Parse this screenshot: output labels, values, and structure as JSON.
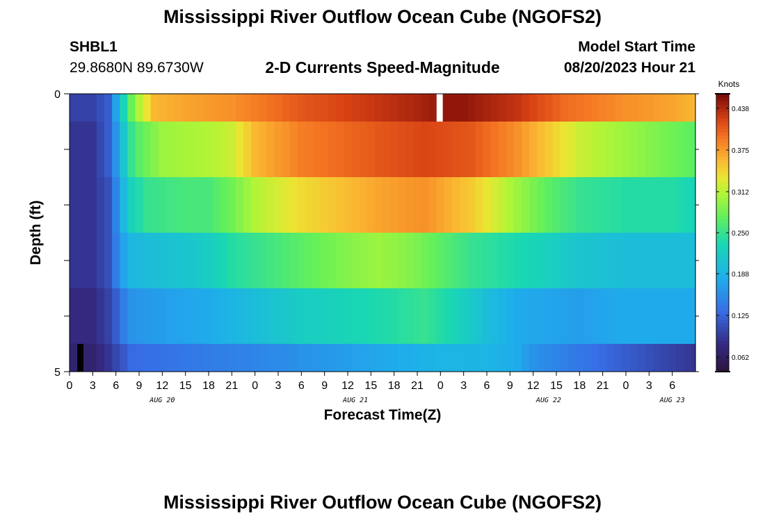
{
  "header": {
    "title": "Mississippi River Outflow Ocean Cube (NGOFS2)",
    "station": "SHBL1",
    "coords": "29.8680N  89.6730W",
    "subtitle": "2-D Currents Speed-Magnitude",
    "model_start_label": "Model Start Time",
    "model_start_value": "08/20/2023 Hour 21"
  },
  "footer_title": "Mississippi River Outflow Ocean Cube (NGOFS2)",
  "chart_data": {
    "type": "heatmap",
    "title": "2-D Currents Speed-Magnitude",
    "xlabel": "Forecast Time(Z)",
    "ylabel": "Depth (ft)",
    "x_range_hours": [
      0,
      81
    ],
    "x_start_hour_of_day": 0,
    "x_tick_labels": [
      "0",
      "3",
      "6",
      "9",
      "12",
      "15",
      "18",
      "21",
      "0",
      "3",
      "6",
      "9",
      "12",
      "15",
      "18",
      "21",
      "0",
      "3",
      "6",
      "9",
      "12",
      "15",
      "18",
      "21",
      "0",
      "3",
      "6"
    ],
    "date_labels": [
      {
        "label": "AUG 20",
        "hour": 12
      },
      {
        "label": "AUG 21",
        "hour": 37
      },
      {
        "label": "AUG 22",
        "hour": 62
      },
      {
        "label": "AUG 23",
        "hour": 78
      }
    ],
    "y_range": [
      0,
      5
    ],
    "y_tick_labels": [
      "0",
      "5"
    ],
    "colorbar": {
      "unit": "Knots",
      "min": 0.04,
      "max": 0.46,
      "tick_values": [
        0.062,
        0.125,
        0.188,
        0.25,
        0.312,
        0.375,
        0.438
      ],
      "tick_labels": [
        "0.062",
        "0.125",
        "0.188",
        "0.250",
        "0.312",
        "0.375",
        "0.438"
      ]
    },
    "missing_markers": [
      {
        "depth": 0,
        "hour": 48,
        "color": "#ffffff"
      },
      {
        "depth": 5,
        "hour": 1.5,
        "color": "#000000"
      }
    ],
    "depth_layers": [
      {
        "depth": 0,
        "points": [
          [
            0,
            0.1
          ],
          [
            3,
            0.1
          ],
          [
            5,
            0.12
          ],
          [
            6.5,
            0.2
          ],
          [
            7.5,
            0.26
          ],
          [
            9,
            0.31
          ],
          [
            11,
            0.36
          ],
          [
            15,
            0.37
          ],
          [
            21,
            0.38
          ],
          [
            24,
            0.39
          ],
          [
            30,
            0.41
          ],
          [
            40,
            0.43
          ],
          [
            45,
            0.44
          ],
          [
            48,
            0.45
          ],
          [
            51,
            0.45
          ],
          [
            58,
            0.43
          ],
          [
            64,
            0.4
          ],
          [
            72,
            0.38
          ],
          [
            78,
            0.37
          ],
          [
            81,
            0.36
          ]
        ]
      },
      {
        "depth": 1,
        "points": [
          [
            0,
            0.09
          ],
          [
            3,
            0.09
          ],
          [
            5,
            0.12
          ],
          [
            6.5,
            0.18
          ],
          [
            7.5,
            0.24
          ],
          [
            9,
            0.27
          ],
          [
            12,
            0.3
          ],
          [
            18,
            0.31
          ],
          [
            21,
            0.32
          ],
          [
            24,
            0.36
          ],
          [
            30,
            0.39
          ],
          [
            40,
            0.41
          ],
          [
            46,
            0.42
          ],
          [
            52,
            0.41
          ],
          [
            58,
            0.38
          ],
          [
            62,
            0.35
          ],
          [
            66,
            0.32
          ],
          [
            72,
            0.3
          ],
          [
            78,
            0.28
          ],
          [
            81,
            0.27
          ]
        ]
      },
      {
        "depth": 2,
        "points": [
          [
            0,
            0.09
          ],
          [
            3,
            0.09
          ],
          [
            5,
            0.11
          ],
          [
            6.5,
            0.17
          ],
          [
            7.5,
            0.22
          ],
          [
            10,
            0.25
          ],
          [
            15,
            0.26
          ],
          [
            18,
            0.26
          ],
          [
            21,
            0.28
          ],
          [
            24,
            0.31
          ],
          [
            30,
            0.34
          ],
          [
            40,
            0.37
          ],
          [
            46,
            0.38
          ],
          [
            52,
            0.35
          ],
          [
            58,
            0.3
          ],
          [
            62,
            0.27
          ],
          [
            66,
            0.25
          ],
          [
            72,
            0.24
          ],
          [
            78,
            0.24
          ],
          [
            81,
            0.23
          ]
        ]
      },
      {
        "depth": 3,
        "points": [
          [
            0,
            0.09
          ],
          [
            3,
            0.09
          ],
          [
            5,
            0.11
          ],
          [
            6.5,
            0.16
          ],
          [
            7.5,
            0.19
          ],
          [
            10,
            0.2
          ],
          [
            15,
            0.21
          ],
          [
            18,
            0.22
          ],
          [
            21,
            0.24
          ],
          [
            24,
            0.25
          ],
          [
            30,
            0.27
          ],
          [
            36,
            0.29
          ],
          [
            40,
            0.3
          ],
          [
            44,
            0.29
          ],
          [
            48,
            0.27
          ],
          [
            52,
            0.25
          ],
          [
            56,
            0.24
          ],
          [
            60,
            0.23
          ],
          [
            66,
            0.21
          ],
          [
            72,
            0.2
          ],
          [
            81,
            0.2
          ]
        ]
      },
      {
        "depth": 4,
        "points": [
          [
            0,
            0.08
          ],
          [
            3,
            0.08
          ],
          [
            5,
            0.1
          ],
          [
            6.5,
            0.13
          ],
          [
            7.5,
            0.16
          ],
          [
            12,
            0.17
          ],
          [
            18,
            0.18
          ],
          [
            24,
            0.2
          ],
          [
            30,
            0.22
          ],
          [
            36,
            0.23
          ],
          [
            42,
            0.24
          ],
          [
            46,
            0.25
          ],
          [
            50,
            0.23
          ],
          [
            54,
            0.2
          ],
          [
            58,
            0.18
          ],
          [
            66,
            0.17
          ],
          [
            72,
            0.18
          ],
          [
            81,
            0.18
          ]
        ]
      },
      {
        "depth": 5,
        "points": [
          [
            0,
            0.07
          ],
          [
            3,
            0.07
          ],
          [
            5,
            0.09
          ],
          [
            6.5,
            0.11
          ],
          [
            8,
            0.13
          ],
          [
            15,
            0.14
          ],
          [
            24,
            0.15
          ],
          [
            30,
            0.16
          ],
          [
            36,
            0.17
          ],
          [
            42,
            0.18
          ],
          [
            48,
            0.19
          ],
          [
            54,
            0.19
          ],
          [
            58,
            0.18
          ],
          [
            60,
            0.16
          ],
          [
            66,
            0.14
          ],
          [
            72,
            0.12
          ],
          [
            78,
            0.1
          ],
          [
            81,
            0.09
          ]
        ]
      }
    ]
  }
}
